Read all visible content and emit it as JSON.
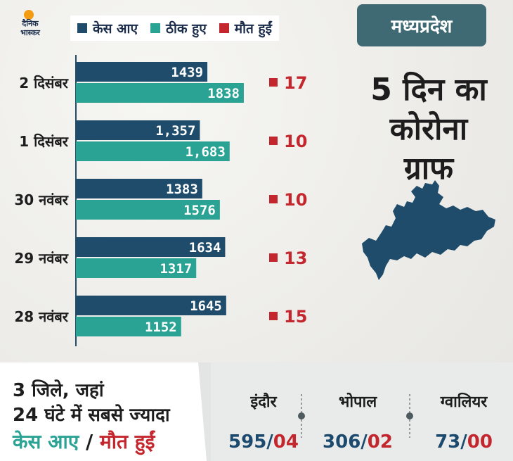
{
  "brand": {
    "line1": "दैनिक",
    "line2": "भास्कर"
  },
  "legend": [
    {
      "label": "केस आए",
      "color": "#1f4c6b"
    },
    {
      "label": "ठीक हुए",
      "color": "#2aa394"
    },
    {
      "label": "मौत हुईं",
      "color": "#c4262e"
    }
  ],
  "panel": {
    "state": "मध्यप्रदेश",
    "headline": [
      "5 दिन का",
      "कोरोना",
      "ग्राफ"
    ]
  },
  "chart_data": {
    "type": "bar",
    "orientation": "horizontal",
    "categories": [
      "2 दिसंबर",
      "1 दिसंबर",
      "30 नवंबर",
      "29 नवंबर",
      "28 नवंबर"
    ],
    "series": [
      {
        "name": "केस आए",
        "values": [
          1439,
          1357,
          1383,
          1634,
          1645
        ],
        "labels": [
          "1439",
          "1,357",
          "1383",
          "1634",
          "1645"
        ],
        "color": "#1f4c6b"
      },
      {
        "name": "ठीक हुए",
        "values": [
          1838,
          1683,
          1576,
          1317,
          1152
        ],
        "labels": [
          "1838",
          "1,683",
          "1576",
          "1317",
          "1152"
        ],
        "color": "#2aa394"
      },
      {
        "name": "मौत हुईं",
        "values": [
          17,
          10,
          10,
          13,
          15
        ],
        "labels": [
          "17",
          "10",
          "10",
          "13",
          "15"
        ],
        "color": "#c4262e"
      }
    ],
    "xlim": [
      0,
      2000
    ]
  },
  "bottom": {
    "line1": "3 जिले, जहां",
    "line2": "24 घंटे में सबसे ज्यादा",
    "line3a": "केस आए",
    "line3sep": "/",
    "line3b": "मौत हुईं",
    "cities": [
      {
        "name": "इंदौर",
        "cases": "595",
        "sep": "/",
        "deaths": "04"
      },
      {
        "name": "भोपाल",
        "cases": "306",
        "sep": "/",
        "deaths": "02"
      },
      {
        "name": "ग्वालियर",
        "cases": "73",
        "sep": "/",
        "deaths": "00"
      }
    ]
  }
}
